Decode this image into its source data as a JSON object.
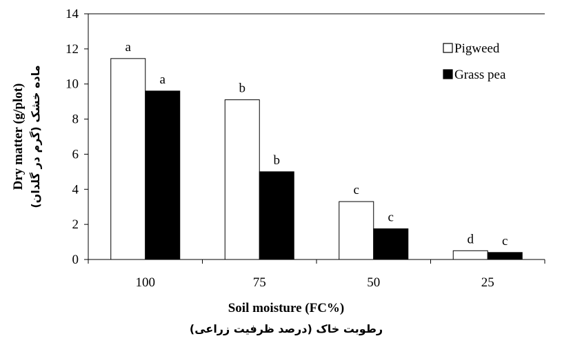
{
  "chart_data": {
    "type": "bar",
    "categories": [
      "100",
      "75",
      "50",
      "25"
    ],
    "series": [
      {
        "name": "Pigweed",
        "values": [
          11.45,
          9.1,
          3.3,
          0.5
        ],
        "letters": [
          "a",
          "b",
          "c",
          "d"
        ],
        "fill": "#ffffff",
        "stroke": "#000000"
      },
      {
        "name": "Grass pea",
        "values": [
          9.6,
          5.0,
          1.75,
          0.4
        ],
        "letters": [
          "a",
          "b",
          "c",
          "c"
        ],
        "fill": "#000000",
        "stroke": "#000000"
      }
    ],
    "ylim": [
      0,
      14
    ],
    "yticks": [
      "0",
      "2",
      "4",
      "6",
      "8",
      "10",
      "12",
      "14"
    ],
    "xlabel": "Soil moisture (FC%)",
    "xlabel_fa": "رطوبت خاک (درصد ظرفیت زراعی)",
    "ylabel": "Dry matter (g/plot)",
    "ylabel_fa": "ماده خشک (گرم در گلدان)",
    "legend_position": "top-right",
    "grid": false
  }
}
